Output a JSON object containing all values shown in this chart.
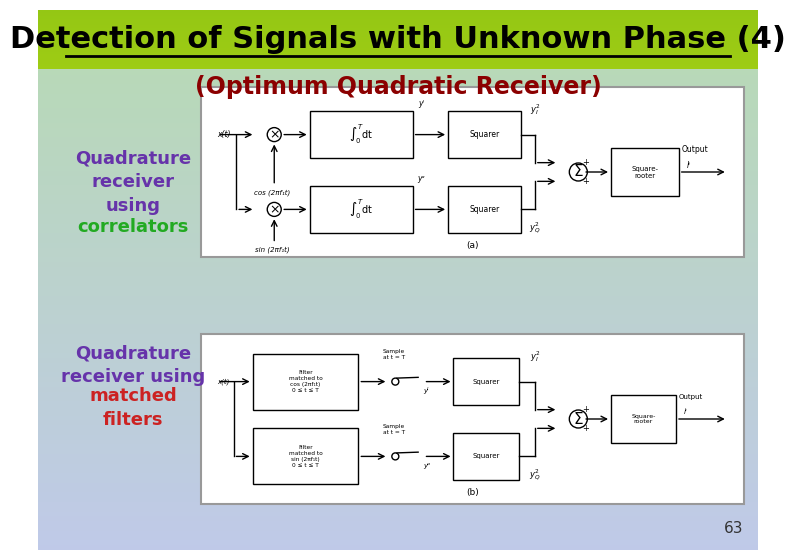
{
  "title": "Detection of Signals with Unknown Phase (4)",
  "subtitle": "(Optimum Quadratic Receiver)",
  "label1_purple": "Quadrature\nreceiver\nusing",
  "label1_green": "correlators",
  "label2_purple": "Quadrature\nreceiver using",
  "label2_red": "matched\nfilters",
  "page_number": "63",
  "title_color": "#000000",
  "subtitle_color": "#8b0000",
  "purple": "#6633aa",
  "green": "#22aa22",
  "red": "#cc2222",
  "title_fs": 22,
  "subtitle_fs": 17,
  "label_fs": 13
}
